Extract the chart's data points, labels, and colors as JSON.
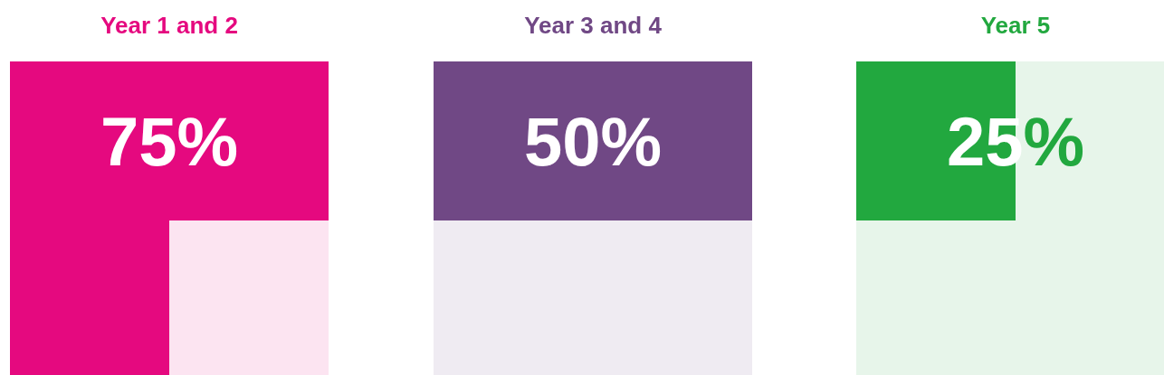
{
  "chart_data": [
    {
      "type": "other",
      "title": "Year 1 and 2",
      "values": [
        75
      ],
      "value_labels": [
        "75%"
      ],
      "color": "#e5097f"
    },
    {
      "type": "other",
      "title": "Year 3 and 4",
      "values": [
        50
      ],
      "value_labels": [
        "50%"
      ],
      "color": "#704885"
    },
    {
      "type": "other",
      "title": "Year 5",
      "values": [
        25
      ],
      "value_labels": [
        "25%"
      ],
      "color": "#22a83f"
    }
  ]
}
